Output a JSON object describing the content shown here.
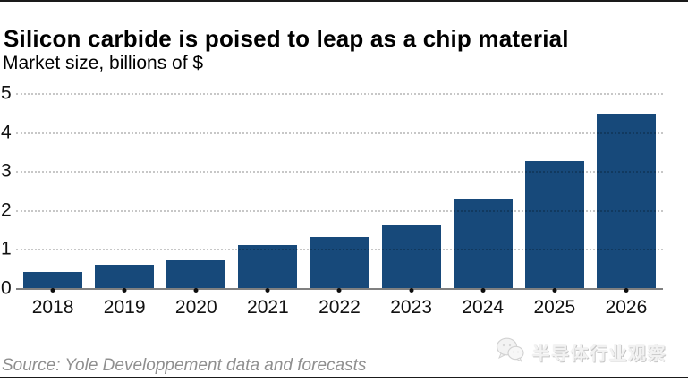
{
  "title": "Silicon carbide is poised to leap as a chip material",
  "subtitle": "Market size, billions of $",
  "source": "Source: Yole Developpement data and forecasts",
  "watermark": {
    "icon": "wechat-icon",
    "text": "半导体行业观察"
  },
  "colors": {
    "bar": "#17497a",
    "axis_line": "#808080",
    "gridline": "rgba(0,0,0,0.22)",
    "source_text": "#8f8f8f",
    "title_text": "#000000"
  },
  "chart_data": {
    "type": "bar",
    "categories": [
      "2018",
      "2019",
      "2020",
      "2021",
      "2022",
      "2023",
      "2024",
      "2025",
      "2026"
    ],
    "values": [
      0.42,
      0.6,
      0.72,
      1.1,
      1.31,
      1.63,
      2.3,
      3.25,
      4.47
    ],
    "title": "Silicon carbide is poised to leap as a chip material",
    "xlabel": "",
    "ylabel": "Market size, billions of $",
    "ylim": [
      0,
      5
    ],
    "yticks": [
      0,
      1,
      2,
      3,
      4,
      5
    ],
    "grid": "horizontal dotted, drawn over bars",
    "legend": "none",
    "bar_color": "#17497a"
  }
}
